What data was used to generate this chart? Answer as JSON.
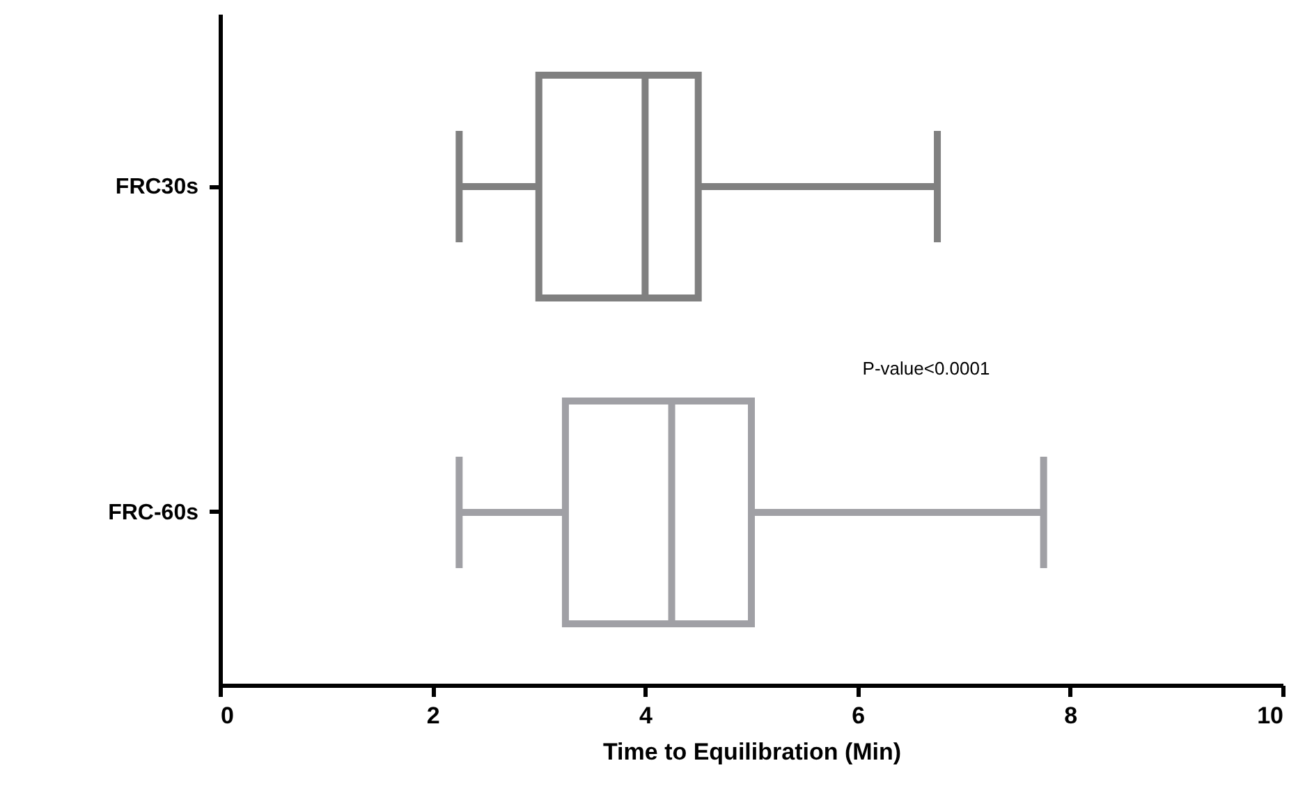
{
  "chart_data": {
    "type": "box",
    "orientation": "horizontal",
    "categories": [
      "FRC30s",
      "FRC-60s"
    ],
    "colors": [
      "#808080",
      "#a0a0a5"
    ],
    "boxes": [
      {
        "low": 2.25,
        "q1": 3.0,
        "median": 4.0,
        "q3": 4.5,
        "high": 6.75
      },
      {
        "low": 2.25,
        "q1": 3.25,
        "median": 4.25,
        "q3": 5.0,
        "high": 7.75
      }
    ],
    "xlabel": "Time to Equilibration (Min)",
    "xlim": [
      0,
      10
    ],
    "xticks": [
      0,
      2,
      4,
      6,
      8,
      10
    ],
    "grid": false,
    "annotations": [
      "P-value<0.0001"
    ]
  }
}
